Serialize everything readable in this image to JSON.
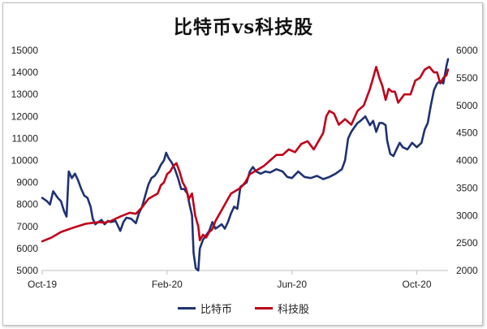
{
  "chart_data": {
    "type": "line",
    "title": "比特币vs科技股",
    "xlabel": "",
    "ylabel": "",
    "x_tick_labels": [
      "Oct-19",
      "Feb-20",
      "Jun-20",
      "Oct-20"
    ],
    "x_tick_positions": [
      0,
      4,
      8,
      12
    ],
    "x_range": [
      0,
      13
    ],
    "y_left": {
      "range": [
        5000,
        15000
      ],
      "ticks": [
        5000,
        6000,
        7000,
        8000,
        9000,
        10000,
        11000,
        12000,
        13000,
        14000,
        15000
      ]
    },
    "y_right": {
      "range": [
        2000,
        6000
      ],
      "ticks": [
        2000,
        2500,
        3000,
        3500,
        4000,
        4500,
        5000,
        5500,
        6000
      ]
    },
    "grid": false,
    "legend": "bottom",
    "series": [
      {
        "name": "比特币",
        "axis": "left",
        "color": "#1f3271",
        "points": [
          [
            0.0,
            8300
          ],
          [
            0.15,
            8150
          ],
          [
            0.25,
            8000
          ],
          [
            0.35,
            8600
          ],
          [
            0.5,
            8300
          ],
          [
            0.6,
            8150
          ],
          [
            0.7,
            7700
          ],
          [
            0.78,
            7450
          ],
          [
            0.85,
            9500
          ],
          [
            0.95,
            9200
          ],
          [
            1.05,
            9400
          ],
          [
            1.15,
            9100
          ],
          [
            1.25,
            8700
          ],
          [
            1.35,
            8400
          ],
          [
            1.45,
            8300
          ],
          [
            1.55,
            7900
          ],
          [
            1.62,
            7350
          ],
          [
            1.7,
            7100
          ],
          [
            1.8,
            7200
          ],
          [
            1.9,
            7300
          ],
          [
            2.0,
            7100
          ],
          [
            2.1,
            7250
          ],
          [
            2.2,
            7200
          ],
          [
            2.35,
            7250
          ],
          [
            2.5,
            6800
          ],
          [
            2.6,
            7200
          ],
          [
            2.7,
            7400
          ],
          [
            2.85,
            7350
          ],
          [
            3.0,
            7150
          ],
          [
            3.1,
            7600
          ],
          [
            3.2,
            7900
          ],
          [
            3.3,
            8400
          ],
          [
            3.4,
            8900
          ],
          [
            3.5,
            9200
          ],
          [
            3.6,
            9300
          ],
          [
            3.7,
            9500
          ],
          [
            3.8,
            9800
          ],
          [
            3.9,
            10000
          ],
          [
            3.97,
            10350
          ],
          [
            4.05,
            10100
          ],
          [
            4.15,
            9900
          ],
          [
            4.25,
            9600
          ],
          [
            4.35,
            9200
          ],
          [
            4.45,
            8700
          ],
          [
            4.55,
            8700
          ],
          [
            4.65,
            8500
          ],
          [
            4.72,
            8000
          ],
          [
            4.8,
            7500
          ],
          [
            4.85,
            5800
          ],
          [
            4.92,
            5100
          ],
          [
            5.0,
            5000
          ],
          [
            5.05,
            6000
          ],
          [
            5.15,
            6400
          ],
          [
            5.25,
            6600
          ],
          [
            5.35,
            6800
          ],
          [
            5.45,
            7200
          ],
          [
            5.55,
            6900
          ],
          [
            5.65,
            7000
          ],
          [
            5.75,
            7100
          ],
          [
            5.85,
            6900
          ],
          [
            5.95,
            7200
          ],
          [
            6.05,
            7600
          ],
          [
            6.15,
            7900
          ],
          [
            6.25,
            7800
          ],
          [
            6.35,
            8800
          ],
          [
            6.45,
            8900
          ],
          [
            6.55,
            9000
          ],
          [
            6.65,
            9500
          ],
          [
            6.75,
            9700
          ],
          [
            6.85,
            9500
          ],
          [
            7.0,
            9400
          ],
          [
            7.15,
            9500
          ],
          [
            7.3,
            9450
          ],
          [
            7.5,
            9600
          ],
          [
            7.7,
            9500
          ],
          [
            7.85,
            9250
          ],
          [
            8.0,
            9200
          ],
          [
            8.2,
            9500
          ],
          [
            8.4,
            9250
          ],
          [
            8.6,
            9200
          ],
          [
            8.8,
            9300
          ],
          [
            9.0,
            9150
          ],
          [
            9.2,
            9250
          ],
          [
            9.4,
            9400
          ],
          [
            9.6,
            9600
          ],
          [
            9.7,
            10000
          ],
          [
            9.8,
            11000
          ],
          [
            9.9,
            11300
          ],
          [
            10.0,
            11500
          ],
          [
            10.1,
            11700
          ],
          [
            10.2,
            11800
          ],
          [
            10.35,
            12000
          ],
          [
            10.5,
            11600
          ],
          [
            10.6,
            11800
          ],
          [
            10.7,
            11300
          ],
          [
            10.8,
            11700
          ],
          [
            10.9,
            11700
          ],
          [
            11.0,
            11600
          ],
          [
            11.05,
            10900
          ],
          [
            11.15,
            10300
          ],
          [
            11.25,
            10200
          ],
          [
            11.35,
            10500
          ],
          [
            11.45,
            10800
          ],
          [
            11.55,
            10600
          ],
          [
            11.7,
            10500
          ],
          [
            11.85,
            10800
          ],
          [
            12.0,
            10600
          ],
          [
            12.15,
            10800
          ],
          [
            12.25,
            11400
          ],
          [
            12.35,
            11700
          ],
          [
            12.45,
            12500
          ],
          [
            12.55,
            13200
          ],
          [
            12.65,
            13500
          ],
          [
            12.75,
            13600
          ],
          [
            12.85,
            13500
          ],
          [
            12.95,
            14300
          ],
          [
            13.0,
            14600
          ]
        ]
      },
      {
        "name": "科技股",
        "axis": "right",
        "color": "#c0001a",
        "points": [
          [
            0.0,
            2530
          ],
          [
            0.3,
            2600
          ],
          [
            0.6,
            2700
          ],
          [
            1.0,
            2780
          ],
          [
            1.4,
            2850
          ],
          [
            1.8,
            2880
          ],
          [
            2.0,
            2870
          ],
          [
            2.2,
            2900
          ],
          [
            2.5,
            2980
          ],
          [
            2.8,
            3050
          ],
          [
            3.0,
            3030
          ],
          [
            3.2,
            3150
          ],
          [
            3.4,
            3300
          ],
          [
            3.55,
            3350
          ],
          [
            3.7,
            3400
          ],
          [
            3.8,
            3550
          ],
          [
            3.9,
            3600
          ],
          [
            4.0,
            3750
          ],
          [
            4.1,
            3800
          ],
          [
            4.2,
            3900
          ],
          [
            4.3,
            3950
          ],
          [
            4.4,
            3800
          ],
          [
            4.5,
            3600
          ],
          [
            4.6,
            3500
          ],
          [
            4.7,
            3300
          ],
          [
            4.8,
            3400
          ],
          [
            4.9,
            3000
          ],
          [
            5.0,
            2800
          ],
          [
            5.05,
            2550
          ],
          [
            5.15,
            2650
          ],
          [
            5.25,
            2600
          ],
          [
            5.35,
            2700
          ],
          [
            5.45,
            2750
          ],
          [
            5.55,
            2900
          ],
          [
            5.65,
            3000
          ],
          [
            5.75,
            3100
          ],
          [
            5.85,
            3200
          ],
          [
            5.95,
            3300
          ],
          [
            6.05,
            3400
          ],
          [
            6.2,
            3450
          ],
          [
            6.35,
            3500
          ],
          [
            6.5,
            3600
          ],
          [
            6.65,
            3750
          ],
          [
            6.8,
            3800
          ],
          [
            6.95,
            3850
          ],
          [
            7.1,
            3900
          ],
          [
            7.3,
            4000
          ],
          [
            7.5,
            4100
          ],
          [
            7.7,
            4100
          ],
          [
            7.9,
            4200
          ],
          [
            8.1,
            4150
          ],
          [
            8.3,
            4300
          ],
          [
            8.5,
            4350
          ],
          [
            8.7,
            4200
          ],
          [
            8.85,
            4350
          ],
          [
            9.0,
            4500
          ],
          [
            9.1,
            4800
          ],
          [
            9.2,
            4900
          ],
          [
            9.35,
            4850
          ],
          [
            9.5,
            4650
          ],
          [
            9.7,
            4750
          ],
          [
            9.9,
            4650
          ],
          [
            10.1,
            4900
          ],
          [
            10.3,
            5000
          ],
          [
            10.5,
            5300
          ],
          [
            10.6,
            5500
          ],
          [
            10.7,
            5700
          ],
          [
            10.8,
            5500
          ],
          [
            10.9,
            5350
          ],
          [
            11.0,
            5100
          ],
          [
            11.1,
            5300
          ],
          [
            11.2,
            5250
          ],
          [
            11.3,
            5250
          ],
          [
            11.4,
            5050
          ],
          [
            11.6,
            5200
          ],
          [
            11.8,
            5200
          ],
          [
            11.95,
            5450
          ],
          [
            12.1,
            5500
          ],
          [
            12.25,
            5650
          ],
          [
            12.4,
            5700
          ],
          [
            12.55,
            5600
          ],
          [
            12.65,
            5600
          ],
          [
            12.75,
            5400
          ],
          [
            12.85,
            5500
          ],
          [
            12.95,
            5550
          ],
          [
            13.0,
            5650
          ]
        ]
      }
    ]
  }
}
